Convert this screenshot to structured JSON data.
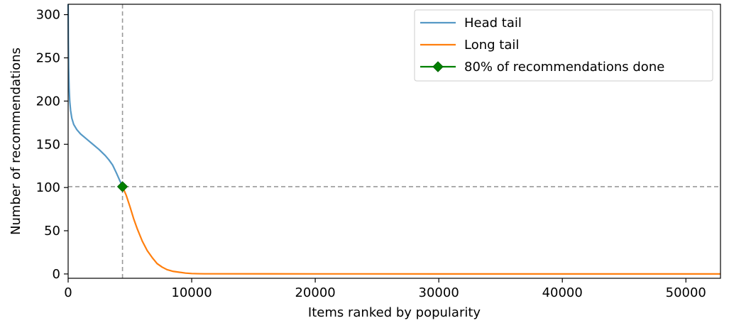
{
  "chart_data": {
    "type": "line",
    "xlabel": "Items ranked by popularity",
    "ylabel": "Number of recommendations",
    "xlim": [
      0,
      52800
    ],
    "ylim": [
      -5,
      312
    ],
    "x_ticks": [
      0,
      10000,
      20000,
      30000,
      40000,
      50000
    ],
    "x_tick_labels": [
      "0",
      "10000",
      "20000",
      "30000",
      "40000",
      "50000"
    ],
    "y_ticks": [
      0,
      50,
      100,
      150,
      200,
      250,
      300
    ],
    "y_tick_labels": [
      "0",
      "50",
      "100",
      "150",
      "200",
      "250",
      "300"
    ],
    "grid": false,
    "legend_position": "top-right",
    "series": [
      {
        "name": "Head tail",
        "color": "#5699c6",
        "x": [
          0,
          15,
          40,
          80,
          130,
          200,
          300,
          450,
          700,
          1000,
          1500,
          2000,
          2500,
          3000,
          3300,
          3600,
          3900,
          4150,
          4400
        ],
        "y": [
          312,
          270,
          238,
          215,
          200,
          189,
          180,
          173,
          167,
          162,
          156,
          150,
          144,
          137,
          132,
          126,
          117,
          109,
          101
        ]
      },
      {
        "name": "Long tail",
        "color": "#ff7f0e",
        "x": [
          4400,
          4700,
          5000,
          5300,
          5600,
          6000,
          6400,
          6800,
          7200,
          7600,
          8000,
          8500,
          9000,
          9500,
          10000,
          10500,
          11000,
          20000,
          30000,
          40000,
          52800
        ],
        "y": [
          101,
          91,
          78,
          64,
          52,
          38,
          27,
          19,
          12,
          8,
          5,
          3,
          2,
          1,
          0.5,
          0.3,
          0.2,
          0.1,
          0.05,
          0.02,
          0
        ]
      }
    ],
    "marker": {
      "name": "80% of recommendations done",
      "color": "#008000",
      "x": 4400,
      "y": 101
    },
    "reference_lines": {
      "vertical_x": 4400,
      "horizontal_y": 101,
      "color": "#999999"
    }
  }
}
